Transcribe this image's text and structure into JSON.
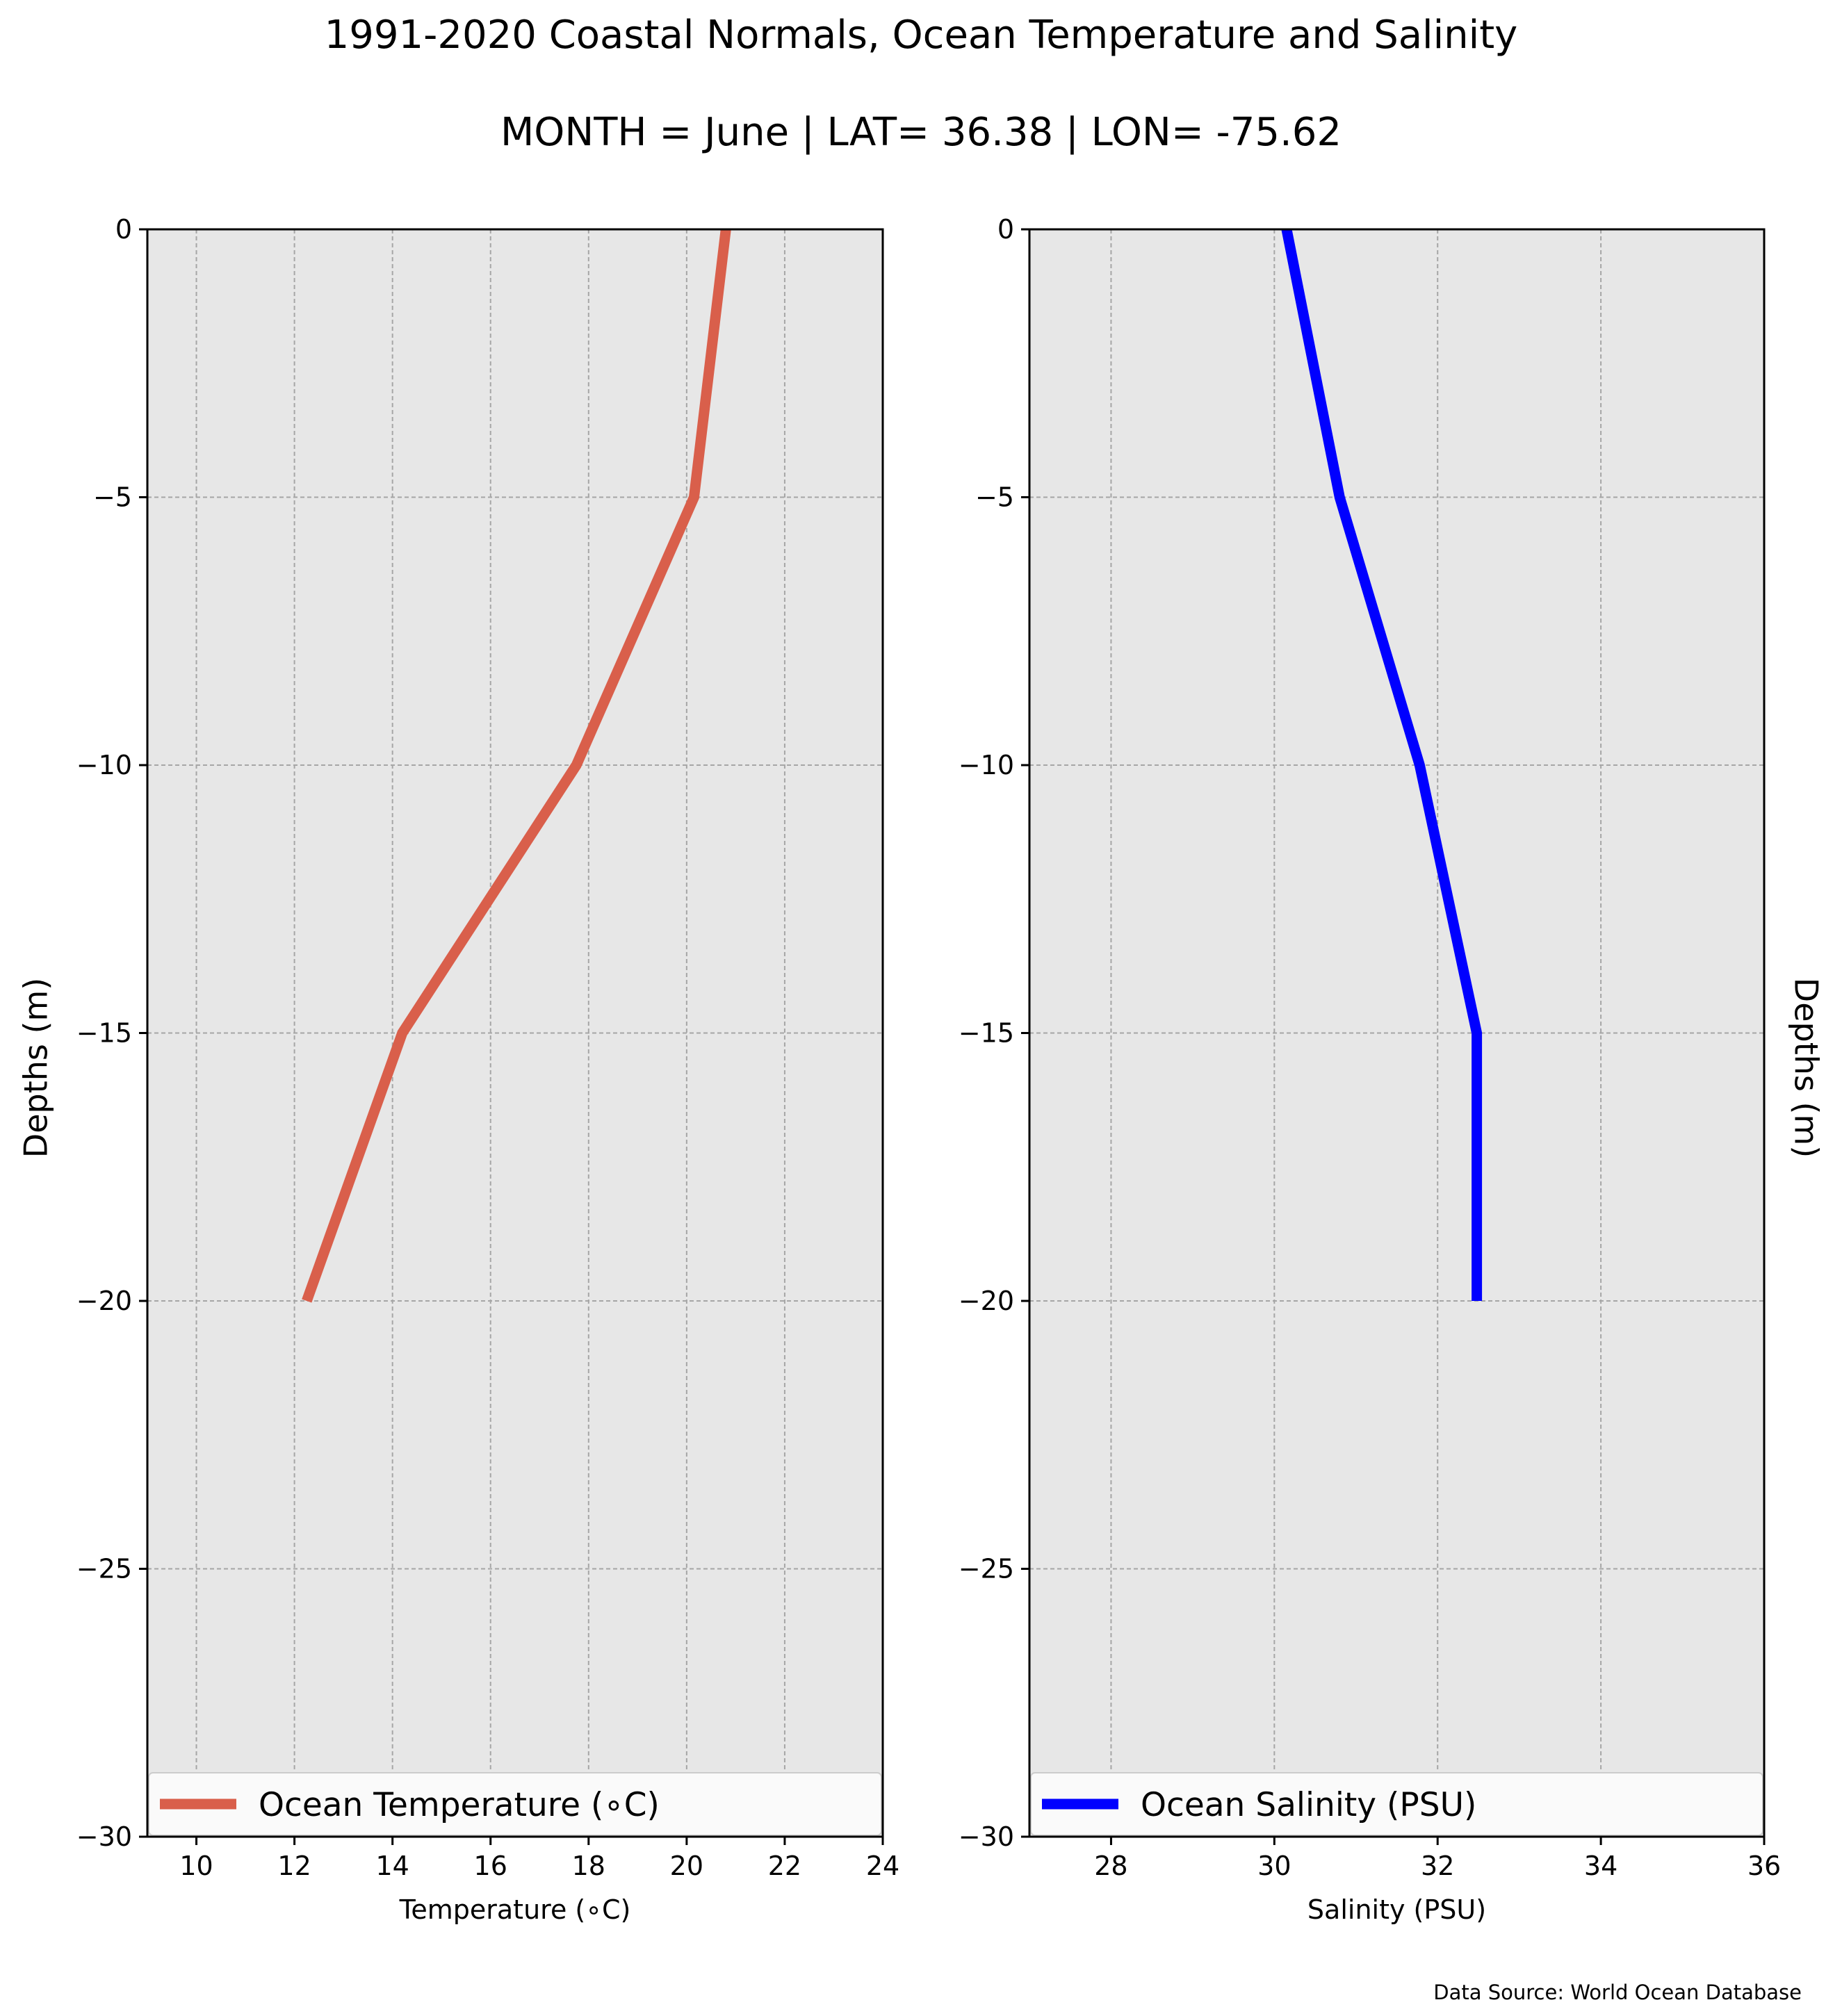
{
  "title_line1": "1991-2020 Coastal Normals, Ocean Temperature and Salinity",
  "title_line2": "MONTH = June | LAT= 36.38 | LON= -75.62",
  "source_note": "Data Source: World Ocean Database",
  "colors": {
    "temperature": "#d95f4b",
    "salinity": "#0000ff",
    "plot_bg": "#e7e7e7",
    "grid": "#a6a6a6"
  },
  "chart_data": [
    {
      "type": "line",
      "title": "",
      "xlabel": "Temperature (∘C)",
      "ylabel": "Depths (m)",
      "ylabel_side": "left",
      "xlim": [
        9,
        24
      ],
      "ylim": [
        -30,
        0
      ],
      "xticks": [
        10,
        12,
        14,
        16,
        18,
        20,
        22,
        24
      ],
      "yticks": [
        0,
        -5,
        -10,
        -15,
        -20,
        -25,
        -30
      ],
      "ytick_labels": [
        "0",
        "−5",
        "−10",
        "−15",
        "−20",
        "−25",
        "−30"
      ],
      "grid": true,
      "legend": "lower-center",
      "series": [
        {
          "name": "Ocean Temperature (∘C)",
          "color": "#d95f4b",
          "x": [
            20.8,
            20.15,
            17.75,
            14.2,
            12.25
          ],
          "y": [
            0,
            -5,
            -10,
            -15,
            -20
          ]
        }
      ]
    },
    {
      "type": "line",
      "title": "",
      "xlabel": "Salinity (PSU)",
      "ylabel": "Depths (m)",
      "ylabel_side": "right",
      "xlim": [
        27,
        36
      ],
      "ylim": [
        -30,
        0
      ],
      "xticks": [
        28,
        30,
        32,
        34,
        36
      ],
      "yticks": [
        0,
        -5,
        -10,
        -15,
        -20,
        -25,
        -30
      ],
      "ytick_labels": [
        "0",
        "−5",
        "−10",
        "−15",
        "−20",
        "−25",
        "−30"
      ],
      "grid": true,
      "legend": "lower-center",
      "series": [
        {
          "name": "Ocean Salinity (PSU)",
          "color": "#0000ff",
          "x": [
            30.15,
            30.8,
            31.78,
            32.48,
            32.48
          ],
          "y": [
            0,
            -5,
            -10,
            -15,
            -20
          ]
        }
      ]
    }
  ]
}
